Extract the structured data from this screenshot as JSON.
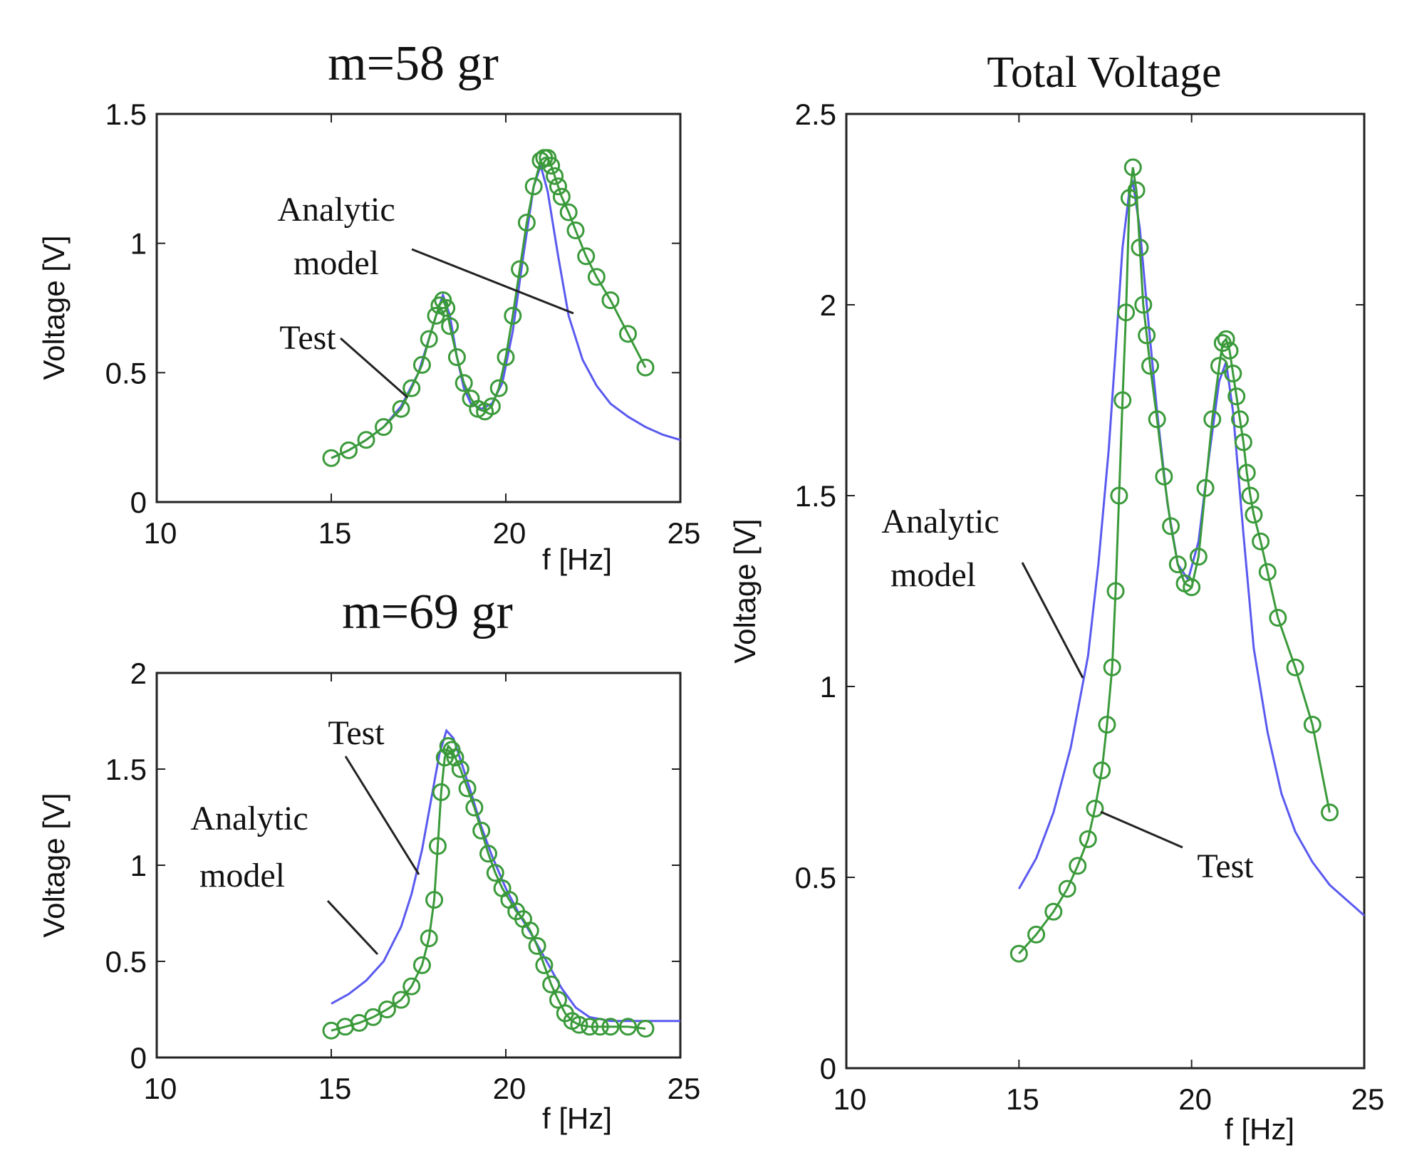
{
  "colors": {
    "analytic": "#5a5af0",
    "test": "#3a9a3a",
    "axis": "#222222"
  },
  "chart_data": [
    {
      "type": "line",
      "title": "m=58 gr",
      "xlabel": "f [Hz]",
      "ylabel": "Voltage [V]",
      "xlim": [
        10,
        25
      ],
      "ylim": [
        0,
        1.5
      ],
      "xticks": [
        "10",
        "15",
        "20",
        "25"
      ],
      "yticks": [
        "0",
        "0.5",
        "1",
        "1.5"
      ],
      "grid": false,
      "legend": "none",
      "annotations": [
        {
          "lines": [
            "Analytic",
            "model"
          ],
          "points_to": [
            22.8,
            0.71
          ]
        },
        {
          "lines": [
            "Test"
          ],
          "points_to": [
            18.4,
            0.4
          ]
        }
      ],
      "series": [
        {
          "role": "analytic",
          "style": "line",
          "x": [
            15,
            15.5,
            16,
            16.5,
            17,
            17.5,
            18,
            18.2,
            18.4,
            18.6,
            18.8,
            19,
            19.3,
            19.6,
            19.9,
            20.2,
            20.5,
            20.8,
            21,
            21.2,
            21.5,
            21.8,
            22.2,
            22.6,
            23,
            23.5,
            24,
            24.5,
            25
          ],
          "y": [
            0.17,
            0.2,
            0.24,
            0.29,
            0.37,
            0.5,
            0.72,
            0.8,
            0.72,
            0.56,
            0.44,
            0.38,
            0.36,
            0.38,
            0.46,
            0.66,
            0.95,
            1.22,
            1.3,
            1.2,
            0.95,
            0.72,
            0.55,
            0.45,
            0.38,
            0.33,
            0.29,
            0.26,
            0.24
          ]
        },
        {
          "role": "test",
          "style": "markers",
          "x": [
            15,
            15.5,
            16,
            16.5,
            17,
            17.3,
            17.6,
            17.8,
            18,
            18.1,
            18.2,
            18.3,
            18.4,
            18.6,
            18.8,
            19,
            19.2,
            19.4,
            19.6,
            19.8,
            20,
            20.2,
            20.4,
            20.6,
            20.8,
            21,
            21.1,
            21.2,
            21.3,
            21.4,
            21.5,
            21.6,
            21.8,
            22,
            22.3,
            22.6,
            23,
            23.5,
            24
          ],
          "y": [
            0.17,
            0.2,
            0.24,
            0.29,
            0.36,
            0.44,
            0.53,
            0.63,
            0.72,
            0.76,
            0.78,
            0.75,
            0.68,
            0.56,
            0.46,
            0.4,
            0.36,
            0.35,
            0.37,
            0.44,
            0.56,
            0.72,
            0.9,
            1.08,
            1.22,
            1.32,
            1.33,
            1.33,
            1.3,
            1.26,
            1.22,
            1.18,
            1.12,
            1.05,
            0.95,
            0.87,
            0.78,
            0.65,
            0.52
          ]
        }
      ]
    },
    {
      "type": "line",
      "title": "m=69 gr",
      "xlabel": "f [Hz]",
      "ylabel": "Voltage [V]",
      "xlim": [
        10,
        25
      ],
      "ylim": [
        0,
        2
      ],
      "xticks": [
        "10",
        "15",
        "20",
        "25"
      ],
      "yticks": [
        "0",
        "0.5",
        "1",
        "1.5",
        "2"
      ],
      "grid": false,
      "legend": "none",
      "annotations": [
        {
          "lines": [
            "Test"
          ],
          "points_to": [
            17.5,
            0.95
          ]
        },
        {
          "lines": [
            "Analytic",
            "model"
          ],
          "points_to": [
            16.5,
            0.48
          ]
        }
      ],
      "series": [
        {
          "role": "analytic",
          "style": "line",
          "x": [
            15,
            15.5,
            16,
            16.5,
            17,
            17.3,
            17.6,
            17.9,
            18.1,
            18.3,
            18.5,
            18.7,
            19,
            19.3,
            19.6,
            20,
            20.4,
            20.8,
            21.2,
            21.6,
            22,
            22.4,
            23,
            23.5,
            24,
            25
          ],
          "y": [
            0.28,
            0.33,
            0.4,
            0.5,
            0.68,
            0.85,
            1.08,
            1.38,
            1.58,
            1.7,
            1.66,
            1.55,
            1.38,
            1.2,
            1.05,
            0.88,
            0.74,
            0.62,
            0.49,
            0.36,
            0.26,
            0.21,
            0.19,
            0.19,
            0.19,
            0.19
          ]
        },
        {
          "role": "test",
          "style": "markers",
          "x": [
            15,
            15.4,
            15.8,
            16.2,
            16.6,
            17,
            17.3,
            17.6,
            17.8,
            17.95,
            18.05,
            18.15,
            18.25,
            18.35,
            18.45,
            18.55,
            18.7,
            18.9,
            19.1,
            19.3,
            19.5,
            19.7,
            19.9,
            20.1,
            20.3,
            20.5,
            20.7,
            20.9,
            21.1,
            21.3,
            21.5,
            21.7,
            21.9,
            22.1,
            22.4,
            22.7,
            23,
            23.5,
            24
          ],
          "y": [
            0.14,
            0.16,
            0.18,
            0.21,
            0.25,
            0.3,
            0.37,
            0.48,
            0.62,
            0.82,
            1.1,
            1.38,
            1.56,
            1.62,
            1.6,
            1.56,
            1.5,
            1.4,
            1.3,
            1.18,
            1.06,
            0.96,
            0.88,
            0.82,
            0.76,
            0.72,
            0.66,
            0.58,
            0.48,
            0.38,
            0.3,
            0.23,
            0.19,
            0.17,
            0.16,
            0.16,
            0.16,
            0.16,
            0.15
          ]
        }
      ]
    },
    {
      "type": "line",
      "title": "Total Voltage",
      "xlabel": "f [Hz]",
      "ylabel": "Voltage [V]",
      "xlim": [
        10,
        25
      ],
      "ylim": [
        0,
        2.5
      ],
      "xticks": [
        "10",
        "15",
        "20",
        "25"
      ],
      "yticks": [
        "0",
        "0.5",
        "1",
        "1.5",
        "2",
        "2.5"
      ],
      "grid": false,
      "legend": "none",
      "annotations": [
        {
          "lines": [
            "Analytic",
            "model"
          ],
          "points_to": [
            16.9,
            1.0
          ]
        },
        {
          "lines": [
            "Test"
          ],
          "points_to": [
            17.2,
            0.67
          ]
        }
      ],
      "series": [
        {
          "role": "analytic",
          "style": "line",
          "x": [
            15,
            15.5,
            16,
            16.5,
            17,
            17.3,
            17.6,
            17.8,
            18,
            18.2,
            18.3,
            18.5,
            18.7,
            19,
            19.3,
            19.6,
            19.9,
            20.2,
            20.5,
            20.8,
            21,
            21.2,
            21.5,
            21.8,
            22.2,
            22.6,
            23,
            23.5,
            24,
            24.5,
            25
          ],
          "y": [
            0.47,
            0.55,
            0.67,
            0.84,
            1.08,
            1.32,
            1.62,
            1.88,
            2.15,
            2.3,
            2.32,
            2.2,
            2.0,
            1.72,
            1.48,
            1.32,
            1.28,
            1.38,
            1.6,
            1.8,
            1.85,
            1.72,
            1.4,
            1.1,
            0.88,
            0.72,
            0.62,
            0.54,
            0.48,
            0.44,
            0.4
          ]
        },
        {
          "role": "test",
          "style": "markers",
          "x": [
            15,
            15.5,
            16,
            16.4,
            16.7,
            17,
            17.2,
            17.4,
            17.55,
            17.7,
            17.8,
            17.9,
            18,
            18.1,
            18.2,
            18.3,
            18.4,
            18.5,
            18.6,
            18.7,
            18.8,
            19,
            19.2,
            19.4,
            19.6,
            19.8,
            20,
            20.2,
            20.4,
            20.6,
            20.8,
            20.9,
            21,
            21.1,
            21.2,
            21.3,
            21.4,
            21.5,
            21.6,
            21.7,
            21.8,
            22,
            22.2,
            22.5,
            23,
            23.5,
            24
          ],
          "y": [
            0.3,
            0.35,
            0.41,
            0.47,
            0.53,
            0.6,
            0.68,
            0.78,
            0.9,
            1.05,
            1.25,
            1.5,
            1.75,
            1.98,
            2.28,
            2.36,
            2.3,
            2.15,
            2.0,
            1.92,
            1.84,
            1.7,
            1.55,
            1.42,
            1.32,
            1.27,
            1.26,
            1.34,
            1.52,
            1.7,
            1.84,
            1.9,
            1.91,
            1.88,
            1.82,
            1.76,
            1.7,
            1.64,
            1.56,
            1.5,
            1.45,
            1.38,
            1.3,
            1.18,
            1.05,
            0.9,
            0.67
          ]
        }
      ]
    }
  ]
}
